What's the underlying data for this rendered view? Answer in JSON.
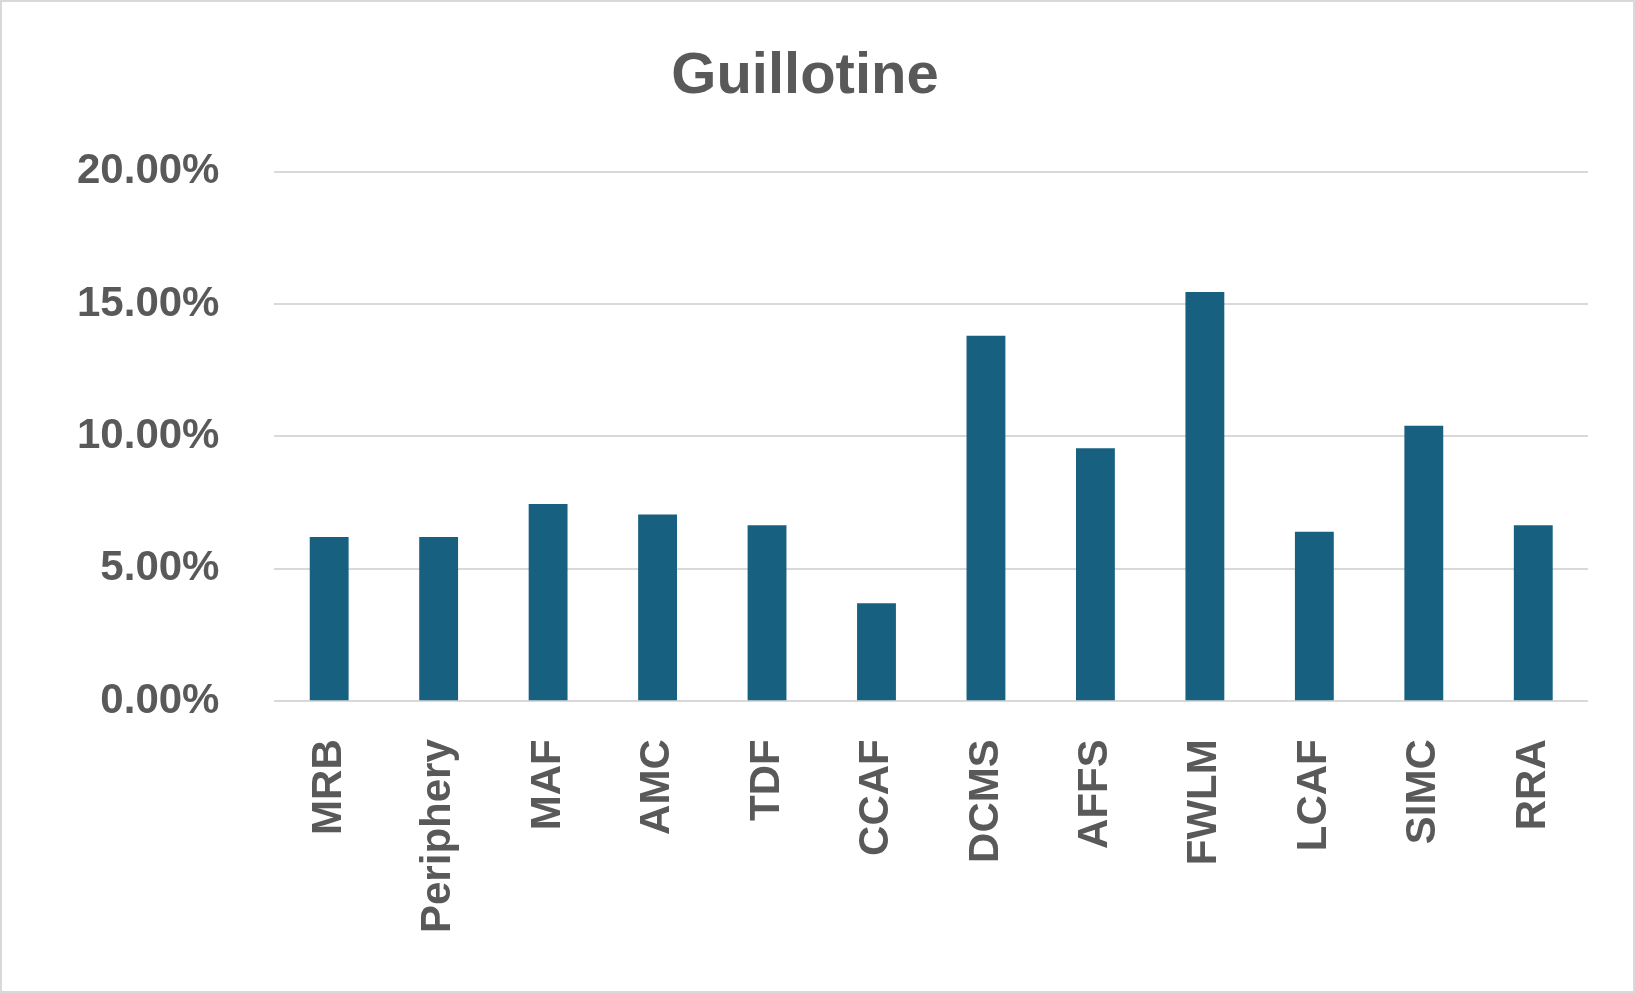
{
  "chart_data": {
    "type": "bar",
    "title": "Guillotine",
    "categories": [
      "MRB",
      "Periphery",
      "MAF",
      "AMC",
      "TDF",
      "CCAF",
      "DCMS",
      "AFFS",
      "FWLM",
      "LCAF",
      "SIMC",
      "RRA"
    ],
    "values": [
      6.2,
      6.2,
      7.45,
      7.05,
      6.65,
      3.7,
      13.8,
      9.55,
      15.45,
      6.4,
      10.4,
      6.65
    ],
    "color": "#17607f",
    "ylim": [
      0,
      20
    ],
    "yticks": [
      {
        "value": 0,
        "label": "0.00%"
      },
      {
        "value": 5,
        "label": "5.00%"
      },
      {
        "value": 10,
        "label": "10.00%"
      },
      {
        "value": 15,
        "label": "15.00%"
      },
      {
        "value": 20,
        "label": "20.00%"
      }
    ],
    "grid": "y",
    "legend": false
  }
}
